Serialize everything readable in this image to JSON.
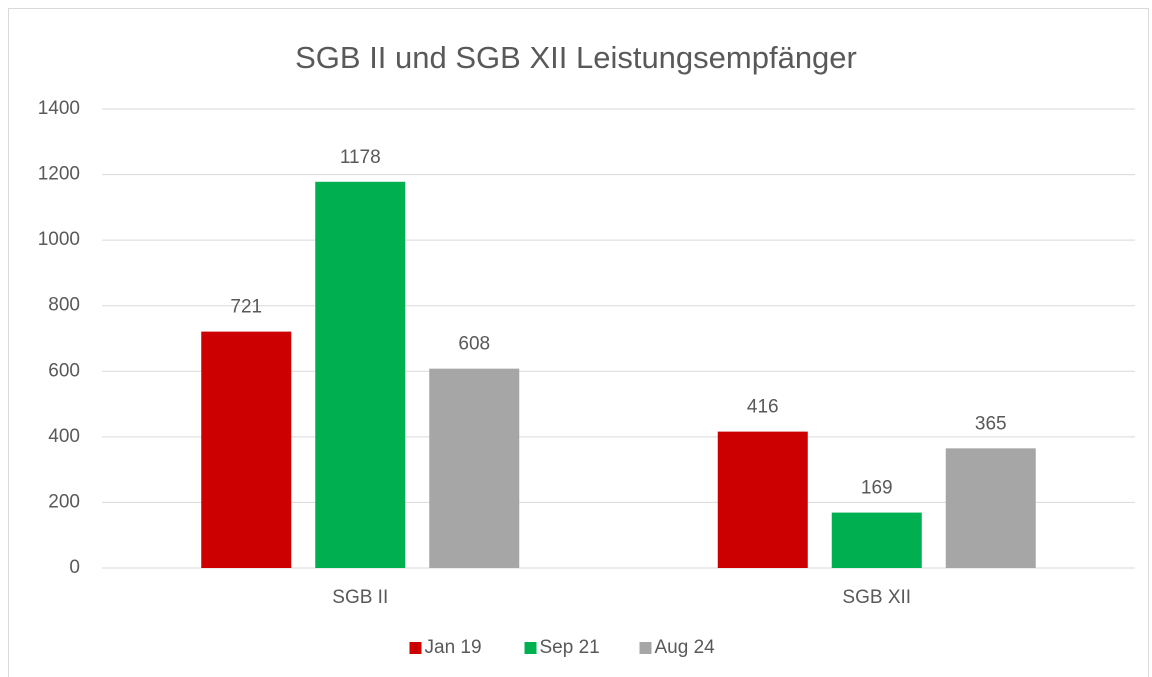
{
  "chart_data": {
    "type": "bar",
    "title": "SGB II und SGB XII Leistungsempfänger",
    "categories": [
      "SGB II",
      "SGB XII"
    ],
    "series": [
      {
        "name": "Jan 19",
        "color": "#cc0000",
        "values": [
          721,
          416
        ]
      },
      {
        "name": "Sep 21",
        "color": "#00b050",
        "values": [
          1178,
          169
        ]
      },
      {
        "name": "Aug 24",
        "color": "#a6a6a6",
        "values": [
          608,
          365
        ]
      }
    ],
    "ylim": [
      0,
      1400
    ],
    "yticks": [
      0,
      200,
      400,
      600,
      800,
      1000,
      1200,
      1400
    ],
    "grid": true,
    "legend": "bottom"
  }
}
